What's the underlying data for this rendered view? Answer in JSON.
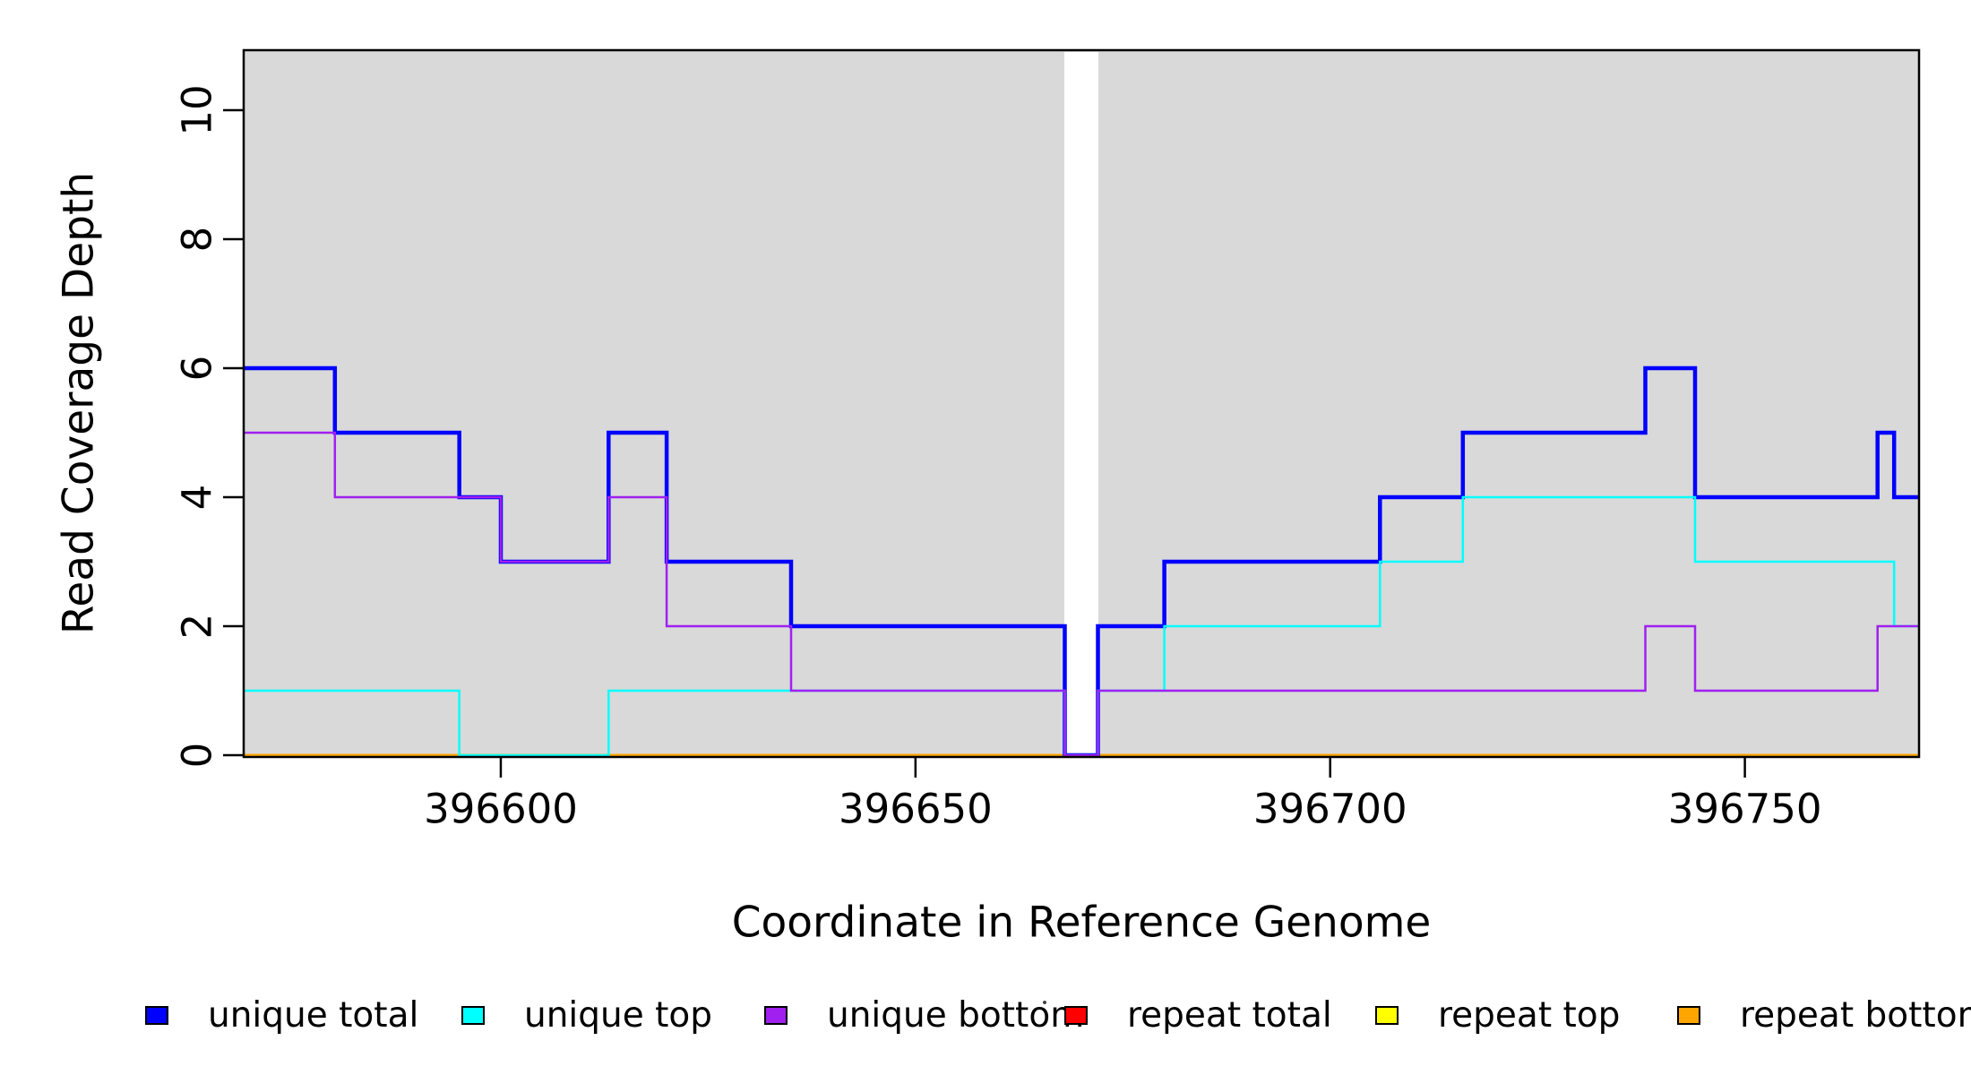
{
  "chart_data": {
    "type": "line",
    "subtype": "step-after-coverage-plot",
    "title": "",
    "xlabel": "Coordinate in Reference Genome",
    "ylabel": "Read Coverage Depth",
    "xlim": [
      396569,
      396771
    ],
    "ylim": [
      0,
      10.9
    ],
    "x_ticks": [
      396600,
      396650,
      396700,
      396750
    ],
    "y_ticks": [
      0,
      2,
      4,
      6,
      8,
      10
    ],
    "grid": false,
    "plot_background_color": "#d9d9d9",
    "page_background_color": "#ffffff",
    "gap_region": {
      "x_start": 396668,
      "x_end": 396672,
      "color": "#ffffff"
    },
    "series": [
      {
        "name": "repeat total",
        "color": "#ff0000",
        "line_width": 2.5,
        "points": [
          [
            396569,
            0
          ],
          [
            396771,
            0
          ]
        ]
      },
      {
        "name": "repeat top",
        "color": "#ffff00",
        "line_width": 2.5,
        "points": [
          [
            396569,
            0
          ],
          [
            396771,
            0
          ]
        ]
      },
      {
        "name": "repeat bottom",
        "color": "#ffa500",
        "line_width": 3,
        "points": [
          [
            396569,
            0
          ],
          [
            396771,
            0
          ]
        ]
      },
      {
        "name": "unique total",
        "color": "#0000ff",
        "line_width": 4.5,
        "points": [
          [
            396569,
            6
          ],
          [
            396580,
            5
          ],
          [
            396595,
            4
          ],
          [
            396600,
            3
          ],
          [
            396613,
            5
          ],
          [
            396620,
            3
          ],
          [
            396635,
            2
          ],
          [
            396668,
            0
          ],
          [
            396672,
            2
          ],
          [
            396680,
            3
          ],
          [
            396706,
            4
          ],
          [
            396716,
            5
          ],
          [
            396738,
            6
          ],
          [
            396744,
            4
          ],
          [
            396766,
            5
          ],
          [
            396768,
            4
          ],
          [
            396771,
            4
          ]
        ]
      },
      {
        "name": "unique top",
        "color": "#00ffff",
        "line_width": 2.5,
        "points": [
          [
            396569,
            1
          ],
          [
            396595,
            0
          ],
          [
            396613,
            1
          ],
          [
            396668,
            0
          ],
          [
            396672,
            1
          ],
          [
            396680,
            2
          ],
          [
            396706,
            3
          ],
          [
            396716,
            4
          ],
          [
            396744,
            3
          ],
          [
            396768,
            2
          ],
          [
            396771,
            2
          ]
        ]
      },
      {
        "name": "unique bottom",
        "color": "#a020f0",
        "line_width": 2.5,
        "points": [
          [
            396569,
            5
          ],
          [
            396580,
            4
          ],
          [
            396600,
            3
          ],
          [
            396613,
            4
          ],
          [
            396620,
            2
          ],
          [
            396635,
            1
          ],
          [
            396668,
            0
          ],
          [
            396672,
            1
          ],
          [
            396738,
            2
          ],
          [
            396744,
            1
          ],
          [
            396766,
            2
          ],
          [
            396771,
            2
          ]
        ]
      }
    ],
    "legend_position": "bottom"
  },
  "legend": {
    "items": [
      {
        "label": "unique total",
        "color": "#0000ff"
      },
      {
        "label": "unique top",
        "color": "#00ffff"
      },
      {
        "label": "unique bottom",
        "color": "#a020f0"
      },
      {
        "label": "repeat total",
        "color": "#ff0000"
      },
      {
        "label": "repeat top",
        "color": "#ffff00"
      },
      {
        "label": "repeat bottom",
        "color": "#ffa500"
      }
    ]
  }
}
